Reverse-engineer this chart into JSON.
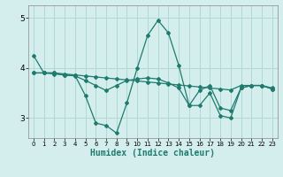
{
  "xlabel": "Humidex (Indice chaleur)",
  "bg_color": "#d4eeed",
  "grid_color": "#b0d8d5",
  "line_color": "#1e7b6e",
  "ylim": [
    2.6,
    5.25
  ],
  "xlim": [
    -0.5,
    23.5
  ],
  "yticks": [
    3,
    4,
    5
  ],
  "xticks": [
    0,
    1,
    2,
    3,
    4,
    5,
    6,
    7,
    8,
    9,
    10,
    11,
    12,
    13,
    14,
    15,
    16,
    17,
    18,
    19,
    20,
    21,
    22,
    23
  ],
  "line1_x": [
    0,
    1,
    2,
    3,
    4,
    5,
    6,
    7,
    8,
    9,
    10,
    11,
    12,
    13,
    14,
    15,
    16,
    17,
    18,
    19,
    20,
    21,
    22,
    23
  ],
  "line1_y": [
    4.25,
    3.9,
    3.9,
    3.85,
    3.85,
    3.45,
    2.9,
    2.85,
    2.7,
    3.3,
    4.0,
    4.65,
    4.95,
    4.7,
    4.05,
    3.25,
    3.25,
    3.5,
    3.05,
    3.0,
    3.6,
    3.65,
    3.65,
    3.58
  ],
  "line2_x": [
    0,
    1,
    2,
    3,
    4,
    5,
    6,
    7,
    8,
    9,
    10,
    11,
    12,
    13,
    14,
    15,
    16,
    17,
    18,
    19,
    20,
    21,
    22,
    23
  ],
  "line2_y": [
    3.9,
    3.9,
    3.9,
    3.88,
    3.86,
    3.84,
    3.82,
    3.8,
    3.78,
    3.76,
    3.74,
    3.72,
    3.7,
    3.68,
    3.66,
    3.64,
    3.62,
    3.6,
    3.58,
    3.56,
    3.65,
    3.65,
    3.65,
    3.6
  ],
  "line3_x": [
    0,
    1,
    2,
    3,
    4,
    5,
    6,
    7,
    8,
    9,
    10,
    11,
    12,
    13,
    14,
    15,
    16,
    17,
    18,
    19,
    20,
    21,
    22,
    23
  ],
  "line3_y": [
    3.9,
    3.9,
    3.88,
    3.86,
    3.84,
    3.75,
    3.65,
    3.55,
    3.65,
    3.75,
    3.78,
    3.8,
    3.78,
    3.7,
    3.6,
    3.25,
    3.55,
    3.65,
    3.2,
    3.15,
    3.6,
    3.65,
    3.65,
    3.58
  ]
}
